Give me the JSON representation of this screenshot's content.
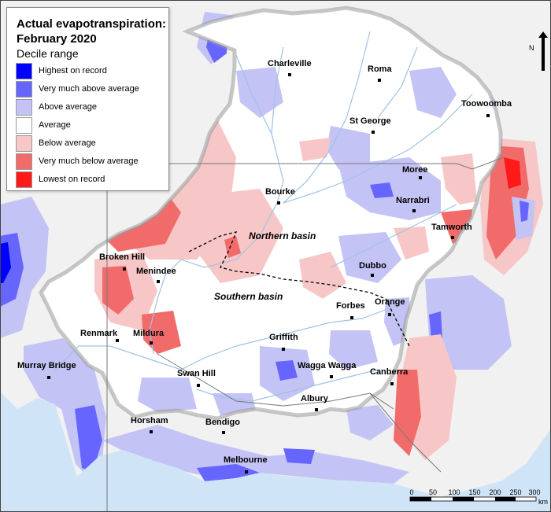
{
  "legend": {
    "title_line1": "Actual evapotranspiration:",
    "title_line2": "February 2020",
    "subtitle": "Decile range",
    "items": [
      {
        "label": "Highest on record",
        "color": "#0000ff"
      },
      {
        "label": "Very much above average",
        "color": "#6666ff"
      },
      {
        "label": "Above average",
        "color": "#c3c3f5"
      },
      {
        "label": "Average",
        "color": "#ffffff"
      },
      {
        "label": "Below average",
        "color": "#f7c6c6"
      },
      {
        "label": "Very much below average",
        "color": "#f26b6b"
      },
      {
        "label": "Lowest on record",
        "color": "#ff1a1a"
      }
    ]
  },
  "cities": {
    "charleville": "Charleville",
    "roma": "Roma",
    "toowoomba": "Toowoomba",
    "st_george": "St George",
    "moree": "Moree",
    "narrabri": "Narrabri",
    "bourke": "Bourke",
    "tamworth": "Tamworth",
    "broken_hill": "Broken Hill",
    "menindee": "Menindee",
    "dubbo": "Dubbo",
    "forbes": "Forbes",
    "orange": "Orange",
    "renmark": "Renmark",
    "mildura": "Mildura",
    "griffith": "Griffith",
    "murray_bridge": "Murray Bridge",
    "wagga_wagga": "Wagga Wagga",
    "canberra": "Canberra",
    "swan_hill": "Swan Hill",
    "albury": "Albury",
    "horsham": "Horsham",
    "bendigo": "Bendigo",
    "melbourne": "Melbourne"
  },
  "basins": {
    "northern": "Northern basin",
    "southern": "Southern basin"
  },
  "scale": {
    "ticks": [
      "0",
      "50",
      "100",
      "150",
      "200",
      "250",
      "300"
    ],
    "unit": "km"
  },
  "north_arrow": "N",
  "colors": {
    "ocean": "#cfe4f6",
    "land_outside": "#f0f0f0",
    "basin_land": "#ffffff",
    "river": "#9fc3e4"
  }
}
